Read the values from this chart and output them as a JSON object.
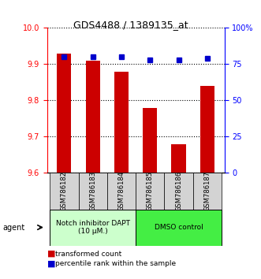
{
  "title": "GDS4488 / 1389135_at",
  "samples": [
    "GSM786182",
    "GSM786183",
    "GSM786184",
    "GSM786185",
    "GSM786186",
    "GSM786187"
  ],
  "transformed_counts": [
    9.93,
    9.91,
    9.88,
    9.78,
    9.68,
    9.84
  ],
  "percentile_ranks": [
    80,
    80,
    80,
    78,
    78,
    79
  ],
  "ylim_left": [
    9.6,
    10.0
  ],
  "ylim_right": [
    0,
    100
  ],
  "yticks_left": [
    9.6,
    9.7,
    9.8,
    9.9,
    10.0
  ],
  "yticks_right": [
    0,
    25,
    50,
    75,
    100
  ],
  "ytick_labels_right": [
    "0",
    "25",
    "50",
    "75",
    "100%"
  ],
  "bar_color": "#cc0000",
  "dot_color": "#0000cc",
  "group1_label": "Notch inhibitor DAPT\n(10 μM.)",
  "group2_label": "DMSO control",
  "group1_indices": [
    0,
    1,
    2
  ],
  "group2_indices": [
    3,
    4,
    5
  ],
  "group1_color": "#ccffcc",
  "group2_color": "#44ee44",
  "agent_label": "agent",
  "legend_bar_label": "transformed count",
  "legend_dot_label": "percentile rank within the sample",
  "grid_color": "#000000",
  "bg_color": "#ffffff",
  "sample_bg_color": "#d3d3d3"
}
